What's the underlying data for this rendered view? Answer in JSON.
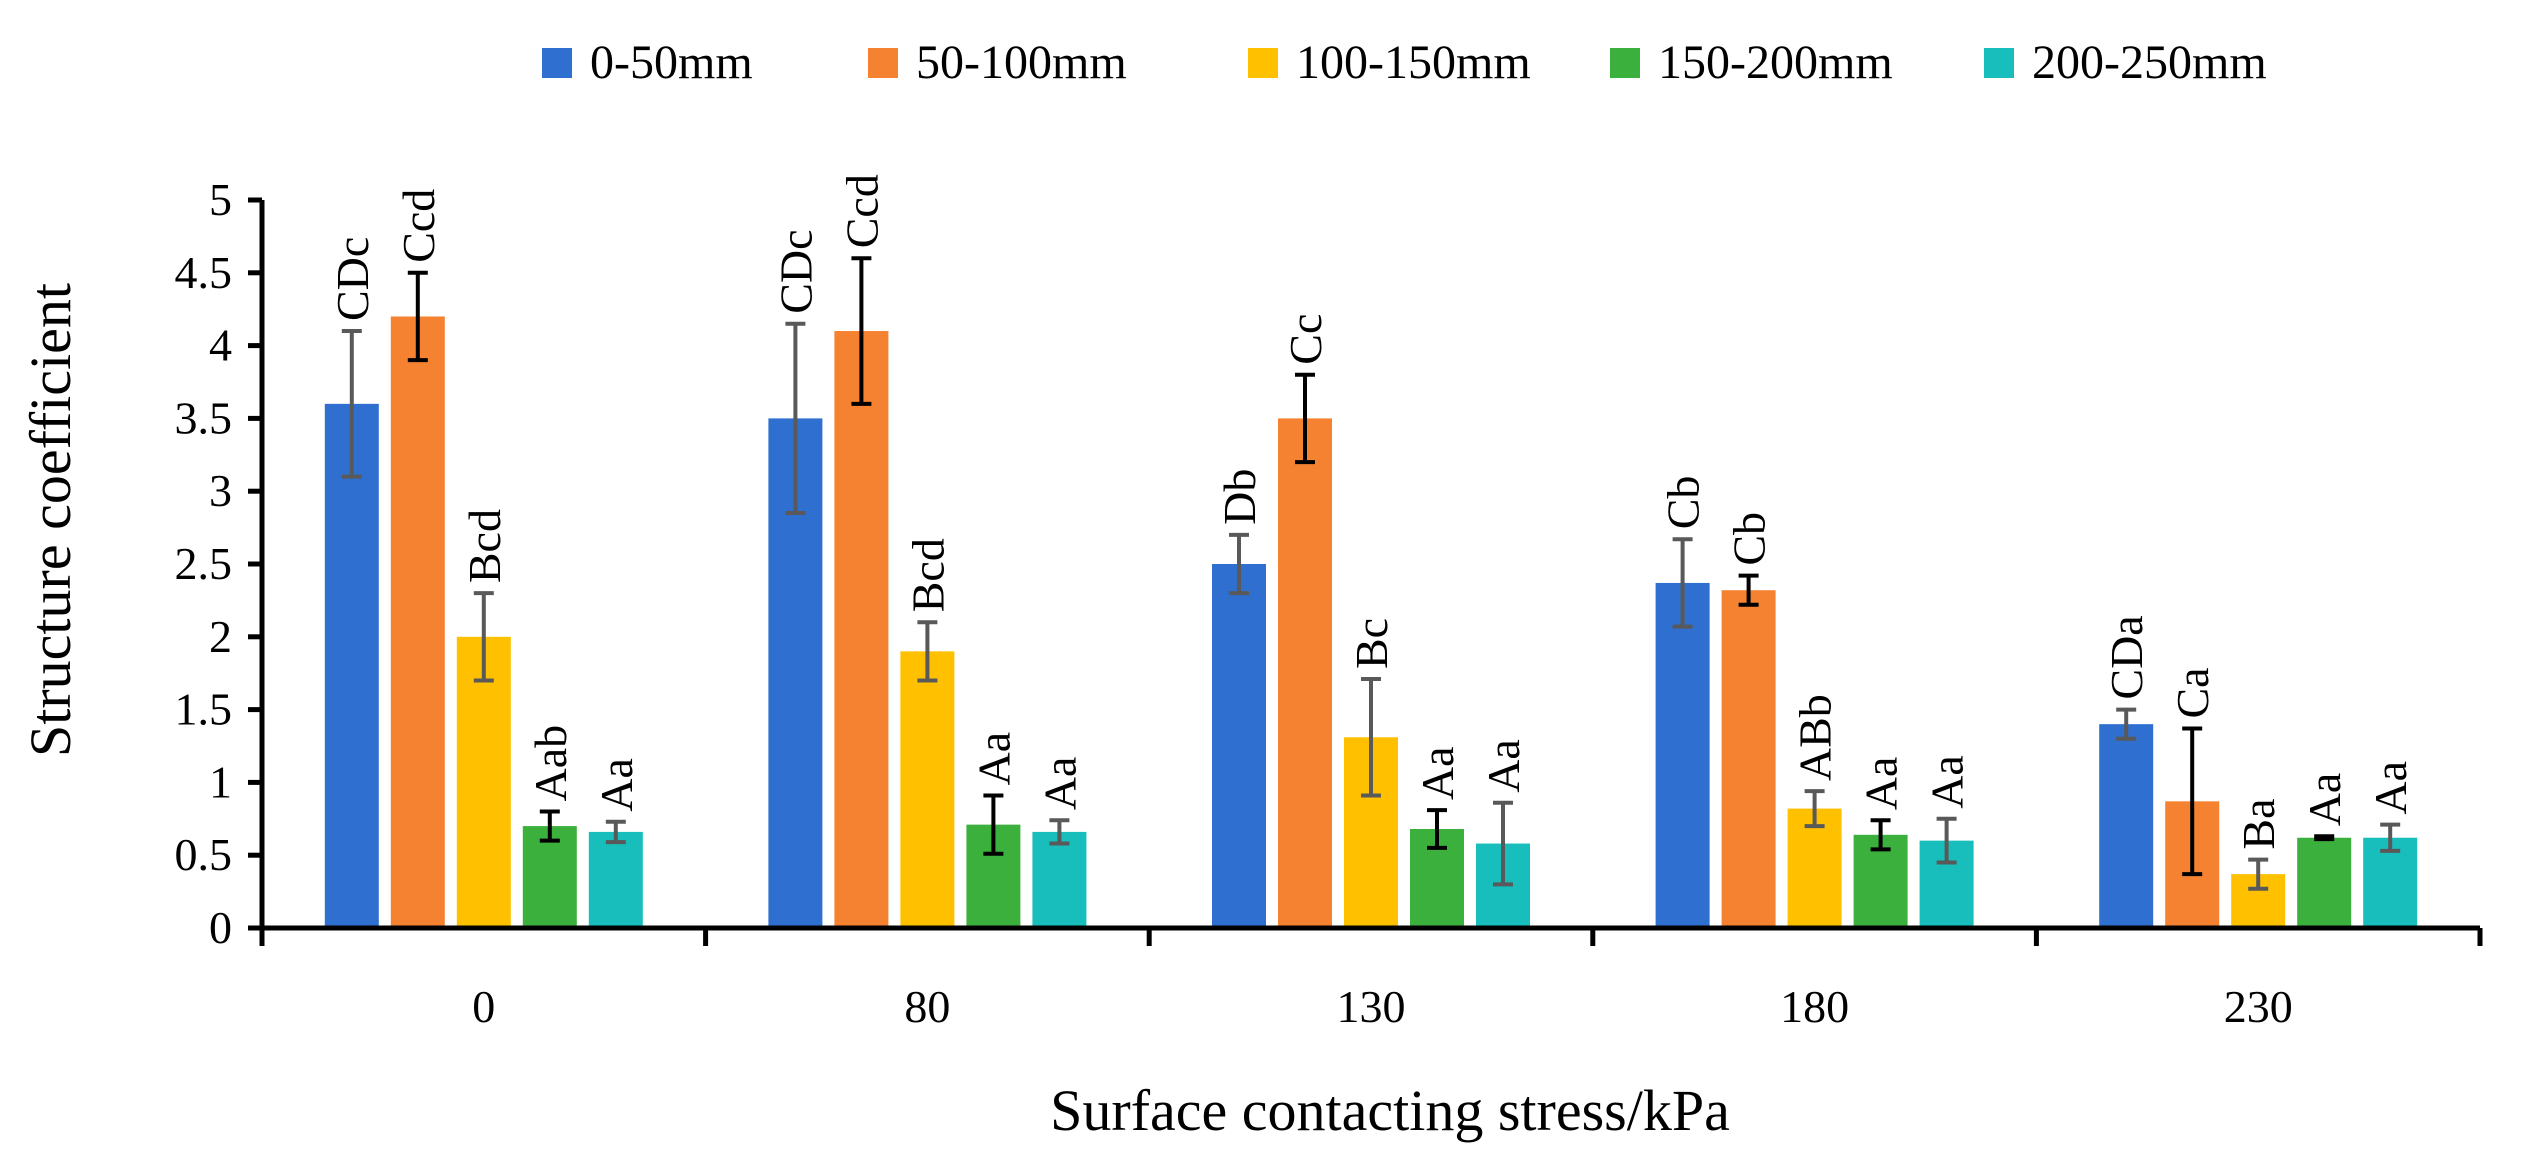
{
  "chart_data": {
    "type": "bar",
    "title": "",
    "xlabel": "Surface contacting stress/kPa",
    "ylabel": "Structure coefficient",
    "ylim": [
      0,
      5
    ],
    "yticks": [
      "0",
      "0.5",
      "1",
      "1.5",
      "2",
      "2.5",
      "3",
      "3.5",
      "4",
      "4.5",
      "5"
    ],
    "categories": [
      "0",
      "80",
      "130",
      "180",
      "230"
    ],
    "legend_position": "top",
    "grid": false,
    "series": [
      {
        "name": "0-50mm",
        "color": "#2F6FD0",
        "values": [
          3.6,
          3.5,
          2.5,
          2.37,
          1.4
        ],
        "errors": [
          0.5,
          0.65,
          0.2,
          0.3,
          0.1
        ],
        "labels": [
          "CDc",
          "CDc",
          "Db",
          "Cb",
          "CDa"
        ]
      },
      {
        "name": "50-100mm",
        "color": "#F58231",
        "values": [
          4.2,
          4.1,
          3.5,
          2.32,
          0.87
        ],
        "errors": [
          0.3,
          0.5,
          0.3,
          0.1,
          0.5
        ],
        "labels": [
          "Ccd",
          "Ccd",
          "Cc",
          "Cb",
          "Ca"
        ]
      },
      {
        "name": "100-150mm",
        "color": "#FFC000",
        "values": [
          2.0,
          1.9,
          1.31,
          0.82,
          0.37
        ],
        "errors": [
          0.3,
          0.2,
          0.4,
          0.12,
          0.1
        ],
        "labels": [
          "Bcd",
          "Bcd",
          "Bc",
          "ABb",
          "Ba"
        ]
      },
      {
        "name": "150-200mm",
        "color": "#3CB03C",
        "values": [
          0.7,
          0.71,
          0.68,
          0.64,
          0.62
        ],
        "errors": [
          0.1,
          0.2,
          0.13,
          0.1,
          0.01
        ],
        "labels": [
          "Aab",
          "Aa",
          "Aa",
          "Aa",
          "Aa"
        ]
      },
      {
        "name": "200-250mm",
        "color": "#17BEBB",
        "values": [
          0.66,
          0.66,
          0.58,
          0.6,
          0.62
        ],
        "errors": [
          0.07,
          0.08,
          0.28,
          0.15,
          0.09
        ],
        "labels": [
          "Aa",
          "Aa",
          "Aa",
          "Aa",
          "Aa"
        ]
      }
    ]
  }
}
